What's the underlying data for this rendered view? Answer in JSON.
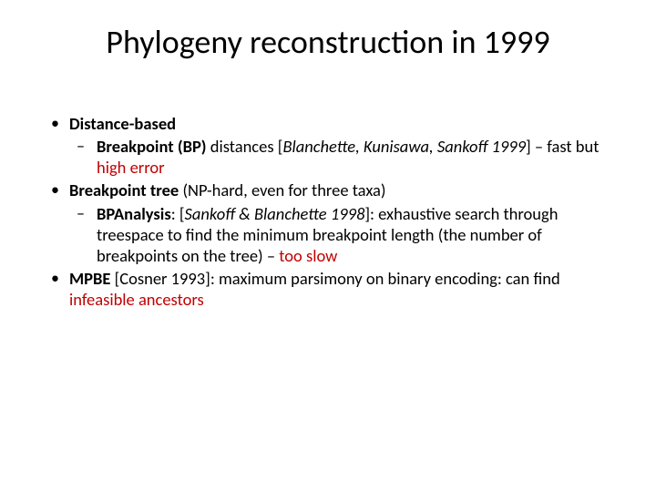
{
  "slide": {
    "title": "Phylogeny reconstruction in 1999",
    "title_fontsize": 36,
    "body_fontsize": 18.5,
    "background_color": "#ffffff",
    "text_color": "#000000",
    "accent_color": "#c00000",
    "bullets": [
      {
        "bold_lead": "Distance-based",
        "rest": "",
        "sub": [
          {
            "bold_lead": "Breakpoint (BP) ",
            "after_bold": "distances [",
            "italic": "Blanchette, Kunisawa, Sankoff 1999",
            "after_italic": "] – fast but ",
            "red": "high error",
            "after_red": ""
          }
        ]
      },
      {
        "bold_lead": "Breakpoint tree ",
        "rest": "(NP-hard, even for three taxa)",
        "sub": [
          {
            "bold_lead": "BPAnalysis",
            "after_bold": ": [",
            "italic": "Sankoff & Blanchette 1998",
            "after_italic": "]: exhaustive search through treespace to find the minimum breakpoint length (the number of breakpoints on the tree) – ",
            "red": "too slow",
            "after_red": ""
          }
        ]
      },
      {
        "bold_lead": "MPBE ",
        "rest_before_red": "[Cosner 1993]: maximum parsimony on binary encoding: can find ",
        "red": "infeasible ancestors",
        "after_red": "",
        "sub": []
      }
    ]
  }
}
